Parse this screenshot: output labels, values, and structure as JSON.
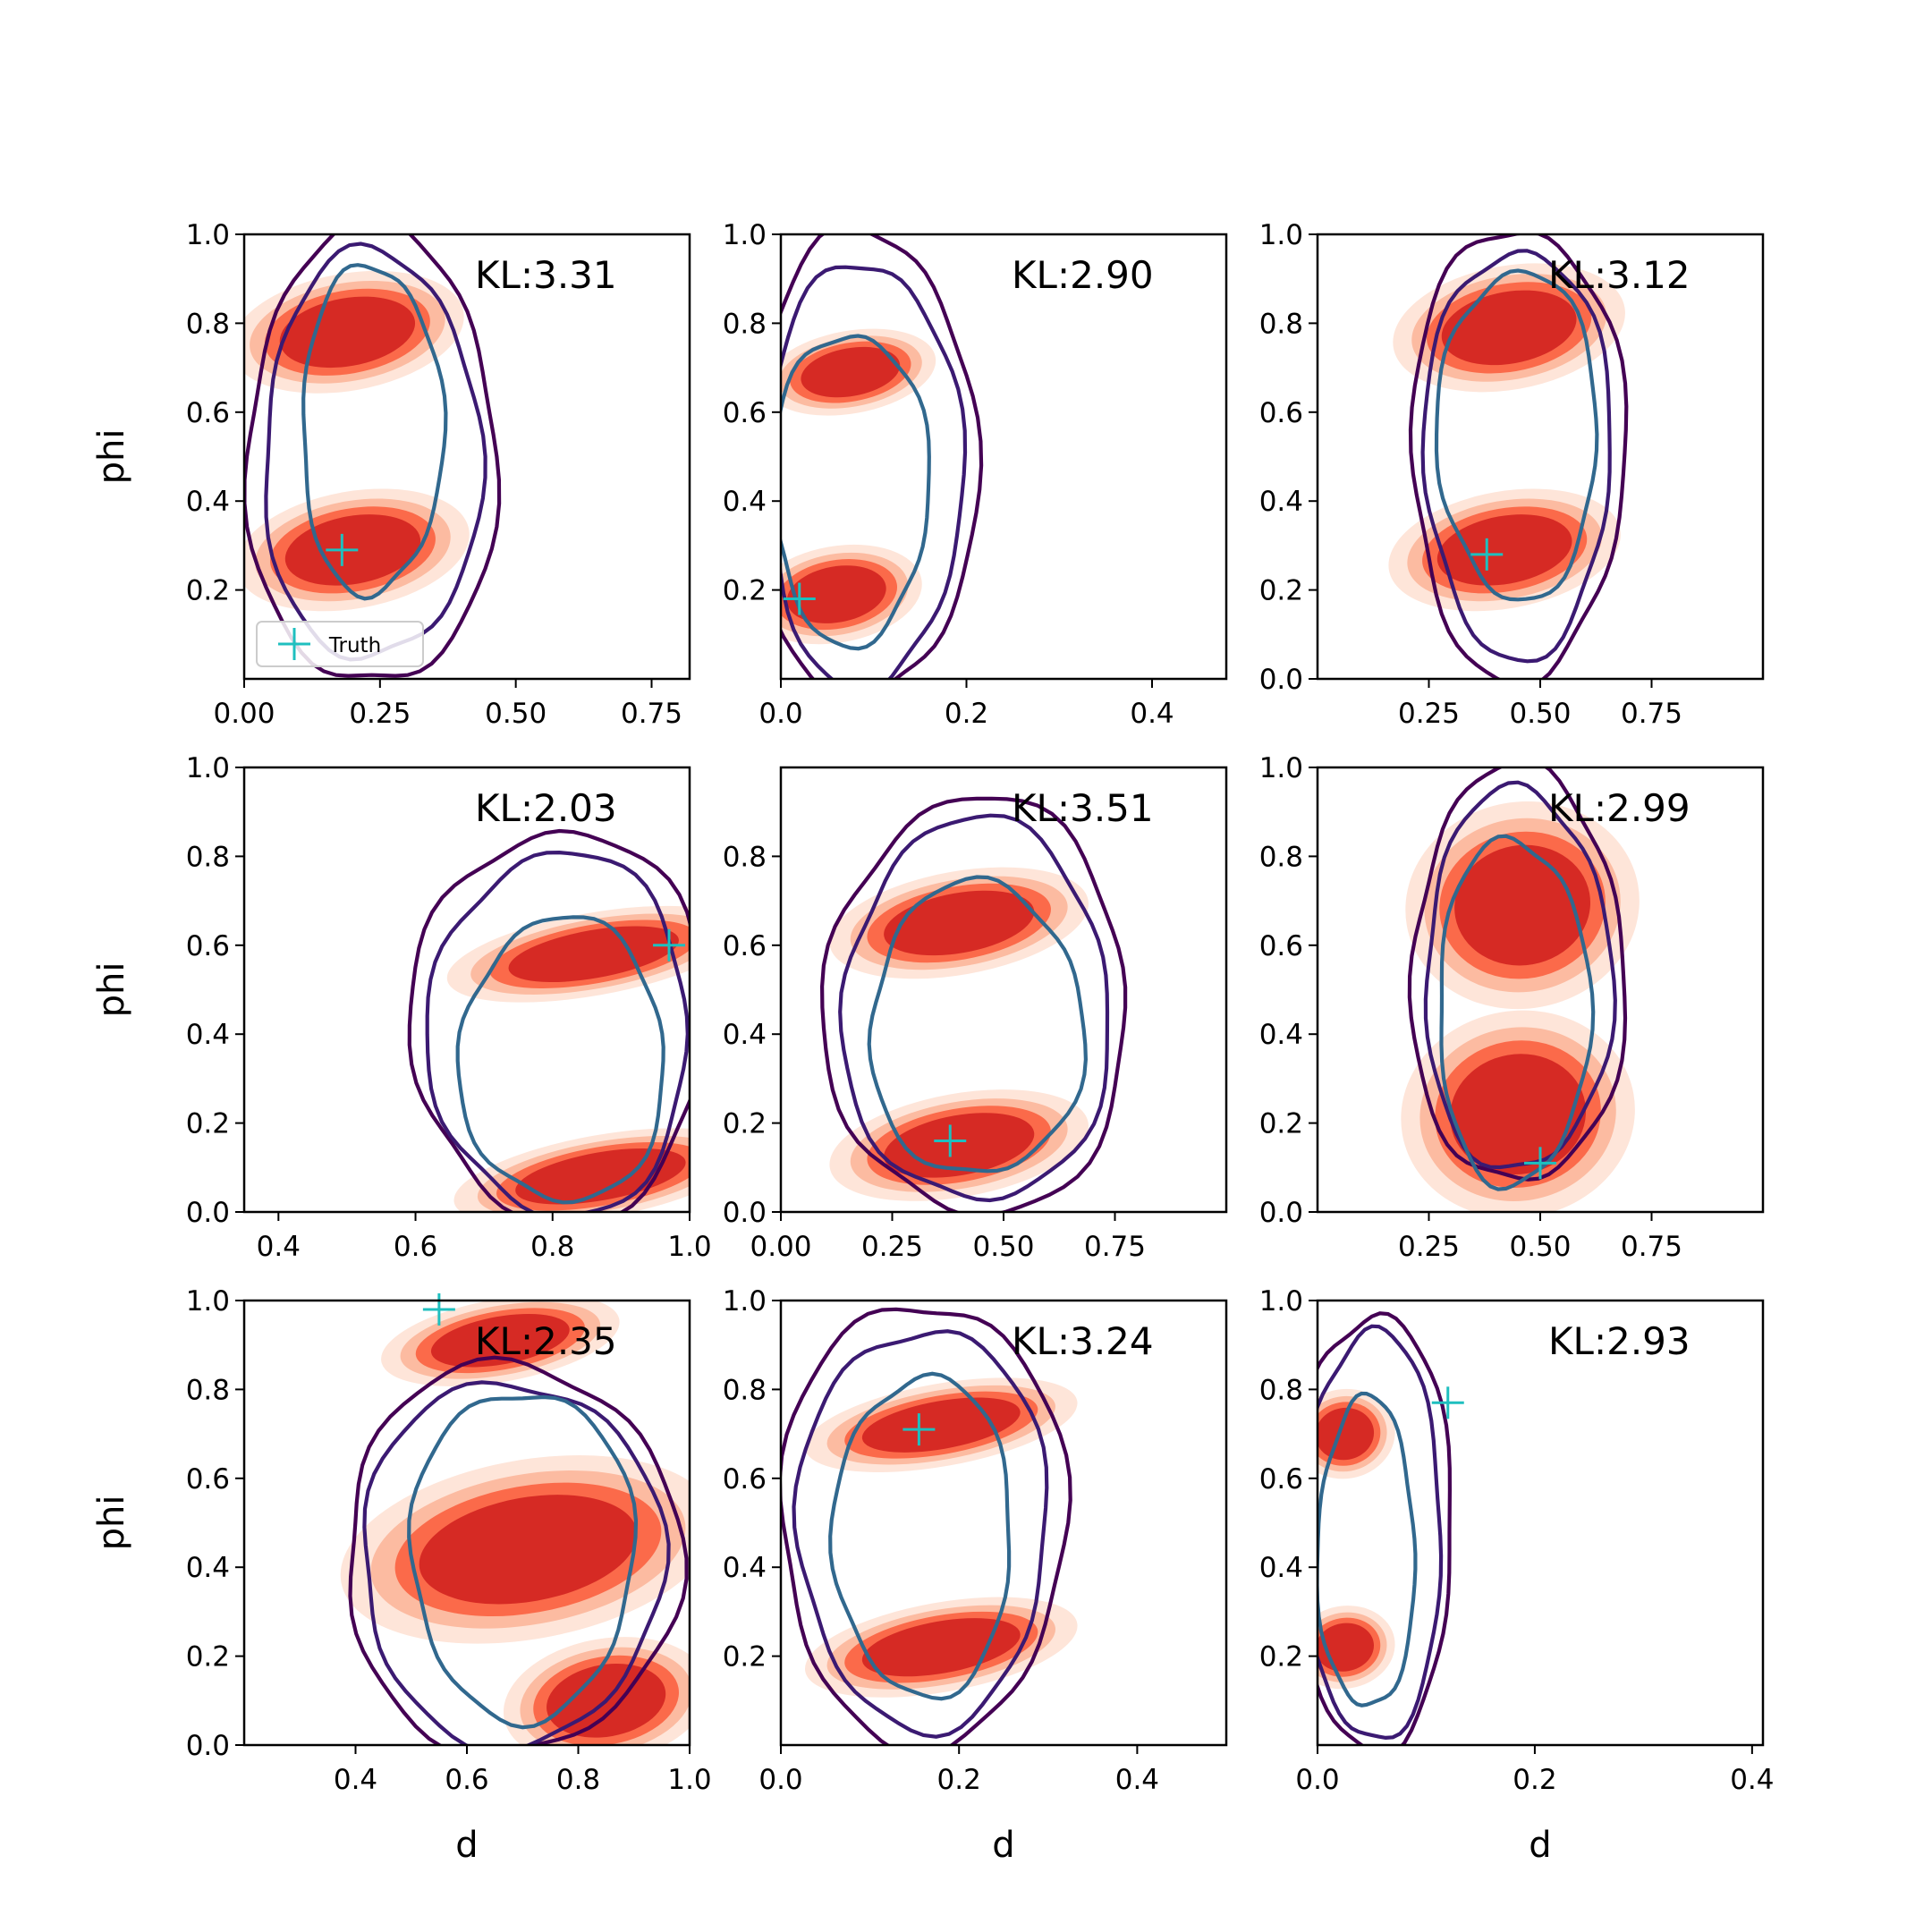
{
  "colors": {
    "fill_levels": [
      "#fee5d9",
      "#fcbba1",
      "#fb6a4a",
      "#d62a24"
    ],
    "contour_outer": "#440154",
    "contour_mid": "#3b1a72",
    "contour_inner": "#31688e",
    "truth_marker": "#1fbfbf"
  },
  "legend": {
    "label": "Truth",
    "panel": 0
  },
  "chart_data": [
    {
      "type": "contour",
      "kl_label": "KL:3.31",
      "xlabel": "",
      "ylabel": "phi",
      "xlim": [
        0.0,
        0.82
      ],
      "ylim": [
        0.0,
        1.0
      ],
      "xticks": [
        {
          "v": 0.0,
          "t": "0.00"
        },
        {
          "v": 0.25,
          "t": "0.25"
        },
        {
          "v": 0.5,
          "t": "0.50"
        },
        {
          "v": 0.75,
          "t": "0.75"
        }
      ],
      "yticks": [
        {
          "v": 0.2,
          "t": "0.2"
        },
        {
          "v": 0.4,
          "t": "0.4"
        },
        {
          "v": 0.6,
          "t": "0.6"
        },
        {
          "v": 0.8,
          "t": "0.8"
        },
        {
          "v": 1.0,
          "t": "1.0"
        }
      ],
      "truth": [
        0.18,
        0.29
      ],
      "blobs": [
        {
          "x": 0.19,
          "y": 0.78,
          "w": 0.14,
          "h": 0.085
        },
        {
          "x": 0.2,
          "y": 0.29,
          "w": 0.14,
          "h": 0.085
        }
      ],
      "contours": [
        {
          "x": 0.235,
          "y": 0.5,
          "w": 0.23,
          "h": 0.52
        },
        {
          "x": 0.235,
          "y": 0.5,
          "w": 0.2,
          "h": 0.46
        },
        {
          "x": 0.235,
          "y": 0.56,
          "w": 0.13,
          "h": 0.37
        }
      ]
    },
    {
      "type": "contour",
      "kl_label": "KL:2.90",
      "xlabel": "",
      "ylabel": "",
      "xlim": [
        0.0,
        0.48
      ],
      "ylim": [
        0.0,
        1.0
      ],
      "xticks": [
        {
          "v": 0.0,
          "t": "0.0"
        },
        {
          "v": 0.2,
          "t": "0.2"
        },
        {
          "v": 0.4,
          "t": "0.4"
        }
      ],
      "yticks": [
        {
          "v": 0.2,
          "t": "0.2"
        },
        {
          "v": 0.4,
          "t": "0.4"
        },
        {
          "v": 0.6,
          "t": "0.6"
        },
        {
          "v": 0.8,
          "t": "0.8"
        },
        {
          "v": 1.0,
          "t": "1.0"
        }
      ],
      "truth": [
        0.02,
        0.18
      ],
      "blobs": [
        {
          "x": 0.075,
          "y": 0.69,
          "w": 0.06,
          "h": 0.06
        },
        {
          "x": 0.06,
          "y": 0.19,
          "w": 0.06,
          "h": 0.07
        }
      ],
      "contours": [
        {
          "x": 0.09,
          "y": 0.48,
          "w": 0.12,
          "h": 0.53
        },
        {
          "x": 0.09,
          "y": 0.46,
          "w": 0.105,
          "h": 0.48
        },
        {
          "x": 0.075,
          "y": 0.43,
          "w": 0.085,
          "h": 0.35
        }
      ]
    },
    {
      "type": "contour",
      "kl_label": "KL:3.12",
      "xlabel": "",
      "ylabel": "",
      "xlim": [
        0.0,
        1.0
      ],
      "ylim": [
        0.0,
        1.0
      ],
      "xticks": [
        {
          "v": 0.25,
          "t": "0.25"
        },
        {
          "v": 0.5,
          "t": "0.50"
        },
        {
          "v": 0.75,
          "t": "0.75"
        }
      ],
      "yticks": [
        {
          "v": 0.0,
          "t": "0.0"
        },
        {
          "v": 0.2,
          "t": "0.2"
        },
        {
          "v": 0.4,
          "t": "0.4"
        },
        {
          "v": 0.6,
          "t": "0.6"
        },
        {
          "v": 0.8,
          "t": "0.8"
        },
        {
          "v": 1.0,
          "t": "1.0"
        }
      ],
      "truth": [
        0.38,
        0.28
      ],
      "blobs": [
        {
          "x": 0.43,
          "y": 0.79,
          "w": 0.17,
          "h": 0.09
        },
        {
          "x": 0.42,
          "y": 0.29,
          "w": 0.17,
          "h": 0.085
        }
      ],
      "contours": [
        {
          "x": 0.45,
          "y": 0.51,
          "w": 0.24,
          "h": 0.51
        },
        {
          "x": 0.45,
          "y": 0.51,
          "w": 0.21,
          "h": 0.46
        },
        {
          "x": 0.45,
          "y": 0.55,
          "w": 0.18,
          "h": 0.37
        }
      ]
    },
    {
      "type": "contour",
      "kl_label": "KL:2.03",
      "xlabel": "",
      "ylabel": "phi",
      "xlim": [
        0.35,
        1.0
      ],
      "ylim": [
        0.0,
        1.0
      ],
      "xticks": [
        {
          "v": 0.4,
          "t": "0.4"
        },
        {
          "v": 0.6,
          "t": "0.6"
        },
        {
          "v": 0.8,
          "t": "0.8"
        },
        {
          "v": 1.0,
          "t": "1.0"
        }
      ],
      "yticks": [
        {
          "v": 0.0,
          "t": "0.0"
        },
        {
          "v": 0.2,
          "t": "0.2"
        },
        {
          "v": 0.4,
          "t": "0.4"
        },
        {
          "v": 0.6,
          "t": "0.6"
        },
        {
          "v": 0.8,
          "t": "0.8"
        },
        {
          "v": 1.0,
          "t": "1.0"
        }
      ],
      "truth": [
        0.97,
        0.6
      ],
      "blobs": [
        {
          "x": 0.86,
          "y": 0.58,
          "w": 0.14,
          "h": 0.06
        },
        {
          "x": 0.87,
          "y": 0.08,
          "w": 0.14,
          "h": 0.06
        }
      ],
      "contours": [
        {
          "x": 0.81,
          "y": 0.42,
          "w": 0.215,
          "h": 0.44
        },
        {
          "x": 0.81,
          "y": 0.4,
          "w": 0.19,
          "h": 0.41
        },
        {
          "x": 0.815,
          "y": 0.34,
          "w": 0.15,
          "h": 0.32
        }
      ]
    },
    {
      "type": "contour",
      "kl_label": "KL:3.51",
      "xlabel": "",
      "ylabel": "",
      "xlim": [
        0.0,
        1.0
      ],
      "ylim": [
        0.0,
        1.0
      ],
      "xticks": [
        {
          "v": 0.0,
          "t": "0.00"
        },
        {
          "v": 0.25,
          "t": "0.25"
        },
        {
          "v": 0.5,
          "t": "0.50"
        },
        {
          "v": 0.75,
          "t": "0.75"
        }
      ],
      "yticks": [
        {
          "v": 0.0,
          "t": "0.0"
        },
        {
          "v": 0.2,
          "t": "0.2"
        },
        {
          "v": 0.4,
          "t": "0.4"
        },
        {
          "v": 0.6,
          "t": "0.6"
        },
        {
          "v": 0.8,
          "t": "0.8"
        }
      ],
      "truth": [
        0.38,
        0.16
      ],
      "blobs": [
        {
          "x": 0.4,
          "y": 0.65,
          "w": 0.19,
          "h": 0.075
        },
        {
          "x": 0.4,
          "y": 0.15,
          "w": 0.19,
          "h": 0.075
        }
      ],
      "contours": [
        {
          "x": 0.44,
          "y": 0.46,
          "w": 0.34,
          "h": 0.47
        },
        {
          "x": 0.44,
          "y": 0.45,
          "w": 0.3,
          "h": 0.43
        },
        {
          "x": 0.44,
          "y": 0.41,
          "w": 0.24,
          "h": 0.33
        }
      ]
    },
    {
      "type": "contour",
      "kl_label": "KL:2.99",
      "xlabel": "",
      "ylabel": "",
      "xlim": [
        0.0,
        1.0
      ],
      "ylim": [
        0.0,
        1.0
      ],
      "xticks": [
        {
          "v": 0.25,
          "t": "0.25"
        },
        {
          "v": 0.5,
          "t": "0.50"
        },
        {
          "v": 0.75,
          "t": "0.75"
        }
      ],
      "yticks": [
        {
          "v": 0.0,
          "t": "0.0"
        },
        {
          "v": 0.2,
          "t": "0.2"
        },
        {
          "v": 0.4,
          "t": "0.4"
        },
        {
          "v": 0.6,
          "t": "0.6"
        },
        {
          "v": 0.8,
          "t": "0.8"
        },
        {
          "v": 1.0,
          "t": "1.0"
        }
      ],
      "truth": [
        0.5,
        0.11
      ],
      "blobs": [
        {
          "x": 0.46,
          "y": 0.69,
          "w": 0.17,
          "h": 0.15
        },
        {
          "x": 0.45,
          "y": 0.22,
          "w": 0.17,
          "h": 0.15
        }
      ],
      "contours": [
        {
          "x": 0.45,
          "y": 0.53,
          "w": 0.24,
          "h": 0.47
        },
        {
          "x": 0.45,
          "y": 0.52,
          "w": 0.21,
          "h": 0.43
        },
        {
          "x": 0.44,
          "y": 0.45,
          "w": 0.17,
          "h": 0.39
        }
      ]
    },
    {
      "type": "contour",
      "kl_label": "KL:2.35",
      "xlabel": "d",
      "ylabel": "phi",
      "xlim": [
        0.2,
        1.0
      ],
      "ylim": [
        0.0,
        1.0
      ],
      "xticks": [
        {
          "v": 0.4,
          "t": "0.4"
        },
        {
          "v": 0.6,
          "t": "0.6"
        },
        {
          "v": 0.8,
          "t": "0.8"
        },
        {
          "v": 1.0,
          "t": "1.0"
        }
      ],
      "yticks": [
        {
          "v": 0.0,
          "t": "0.0"
        },
        {
          "v": 0.2,
          "t": "0.2"
        },
        {
          "v": 0.4,
          "t": "0.4"
        },
        {
          "v": 0.6,
          "t": "0.6"
        },
        {
          "v": 0.8,
          "t": "0.8"
        },
        {
          "v": 1.0,
          "t": "1.0"
        }
      ],
      "truth": [
        0.55,
        0.98
      ],
      "blobs": [
        {
          "x": 0.66,
          "y": 0.91,
          "w": 0.14,
          "h": 0.06
        },
        {
          "x": 0.71,
          "y": 0.44,
          "w": 0.22,
          "h": 0.13
        },
        {
          "x": 0.85,
          "y": 0.1,
          "w": 0.12,
          "h": 0.09
        }
      ],
      "contours": [
        {
          "x": 0.68,
          "y": 0.42,
          "w": 0.3,
          "h": 0.44
        },
        {
          "x": 0.68,
          "y": 0.41,
          "w": 0.27,
          "h": 0.41
        },
        {
          "x": 0.7,
          "y": 0.43,
          "w": 0.2,
          "h": 0.37
        }
      ]
    },
    {
      "type": "contour",
      "kl_label": "KL:3.24",
      "xlabel": "d",
      "ylabel": "",
      "xlim": [
        0.0,
        0.5
      ],
      "ylim": [
        0.0,
        1.0
      ],
      "xticks": [
        {
          "v": 0.0,
          "t": "0.0"
        },
        {
          "v": 0.2,
          "t": "0.2"
        },
        {
          "v": 0.4,
          "t": "0.4"
        }
      ],
      "yticks": [
        {
          "v": 0.2,
          "t": "0.2"
        },
        {
          "v": 0.4,
          "t": "0.4"
        },
        {
          "v": 0.6,
          "t": "0.6"
        },
        {
          "v": 0.8,
          "t": "0.8"
        },
        {
          "v": 1.0,
          "t": "1.0"
        }
      ],
      "truth": [
        0.155,
        0.71
      ],
      "blobs": [
        {
          "x": 0.18,
          "y": 0.72,
          "w": 0.1,
          "h": 0.06
        },
        {
          "x": 0.18,
          "y": 0.22,
          "w": 0.1,
          "h": 0.065
        }
      ],
      "contours": [
        {
          "x": 0.16,
          "y": 0.5,
          "w": 0.16,
          "h": 0.5
        },
        {
          "x": 0.16,
          "y": 0.49,
          "w": 0.14,
          "h": 0.45
        },
        {
          "x": 0.16,
          "y": 0.47,
          "w": 0.1,
          "h": 0.36
        }
      ]
    },
    {
      "type": "contour",
      "kl_label": "KL:2.93",
      "xlabel": "d",
      "ylabel": "",
      "xlim": [
        0.0,
        0.41
      ],
      "ylim": [
        0.0,
        1.0
      ],
      "xticks": [
        {
          "v": 0.0,
          "t": "0.0"
        },
        {
          "v": 0.2,
          "t": "0.2"
        },
        {
          "v": 0.4,
          "t": "0.4"
        }
      ],
      "yticks": [
        {
          "v": 0.2,
          "t": "0.2"
        },
        {
          "v": 0.4,
          "t": "0.4"
        },
        {
          "v": 0.6,
          "t": "0.6"
        },
        {
          "v": 0.8,
          "t": "0.8"
        },
        {
          "v": 1.0,
          "t": "1.0"
        }
      ],
      "truth": [
        0.12,
        0.77
      ],
      "blobs": [
        {
          "x": 0.025,
          "y": 0.7,
          "w": 0.03,
          "h": 0.065
        },
        {
          "x": 0.025,
          "y": 0.22,
          "w": 0.03,
          "h": 0.06
        }
      ],
      "contours": [
        {
          "x": 0.05,
          "y": 0.48,
          "w": 0.075,
          "h": 0.49
        },
        {
          "x": 0.05,
          "y": 0.47,
          "w": 0.065,
          "h": 0.46
        },
        {
          "x": 0.045,
          "y": 0.43,
          "w": 0.045,
          "h": 0.35
        }
      ]
    }
  ]
}
